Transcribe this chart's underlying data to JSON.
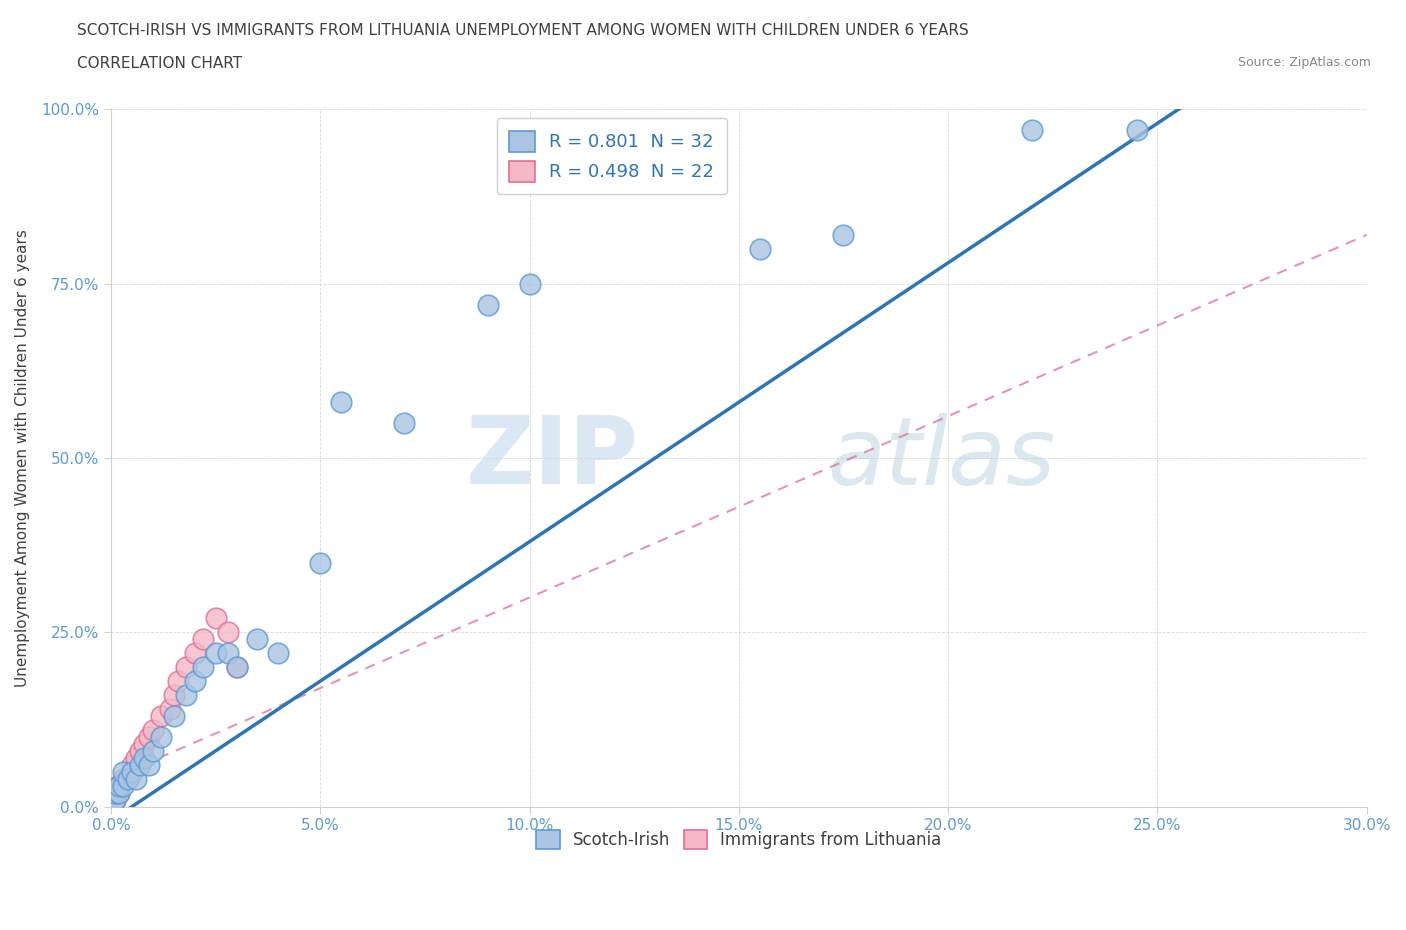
{
  "title_line1": "SCOTCH-IRISH VS IMMIGRANTS FROM LITHUANIA UNEMPLOYMENT AMONG WOMEN WITH CHILDREN UNDER 6 YEARS",
  "title_line2": "CORRELATION CHART",
  "source": "Source: ZipAtlas.com",
  "ylabel": "Unemployment Among Women with Children Under 6 years",
  "xlim": [
    0.0,
    0.3
  ],
  "ylim": [
    0.0,
    1.0
  ],
  "xtick_labels": [
    "0.0%",
    "5.0%",
    "10.0%",
    "15.0%",
    "20.0%",
    "25.0%",
    "30.0%"
  ],
  "xtick_values": [
    0.0,
    0.05,
    0.1,
    0.15,
    0.2,
    0.25,
    0.3
  ],
  "ytick_labels": [
    "0.0%",
    "25.0%",
    "50.0%",
    "75.0%",
    "100.0%"
  ],
  "ytick_values": [
    0.0,
    0.25,
    0.5,
    0.75,
    1.0
  ],
  "scotch_irish_color": "#aac4e2",
  "scotch_irish_edge_color": "#5b9bd5",
  "scotch_irish_line_color": "#2e75b6",
  "lithuania_color": "#f4b8c8",
  "lithuania_edge_color": "#e07090",
  "lithuania_line_color": "#e07090",
  "r_scotch": 0.801,
  "n_scotch": 32,
  "r_lithuania": 0.498,
  "n_lithuania": 22,
  "watermark_zip": "ZIP",
  "watermark_atlas": "atlas",
  "background_color": "#ffffff",
  "scotch_irish_x": [
    0.001,
    0.001,
    0.002,
    0.002,
    0.003,
    0.003,
    0.004,
    0.005,
    0.006,
    0.007,
    0.008,
    0.009,
    0.01,
    0.012,
    0.015,
    0.018,
    0.02,
    0.022,
    0.025,
    0.028,
    0.03,
    0.035,
    0.04,
    0.05,
    0.055,
    0.07,
    0.09,
    0.1,
    0.155,
    0.175,
    0.22,
    0.245
  ],
  "scotch_irish_y": [
    0.01,
    0.02,
    0.02,
    0.03,
    0.03,
    0.05,
    0.04,
    0.05,
    0.04,
    0.06,
    0.07,
    0.06,
    0.08,
    0.1,
    0.13,
    0.16,
    0.18,
    0.2,
    0.22,
    0.22,
    0.2,
    0.24,
    0.22,
    0.35,
    0.58,
    0.55,
    0.72,
    0.75,
    0.8,
    0.82,
    0.97,
    0.97
  ],
  "lithuania_x": [
    0.001,
    0.001,
    0.002,
    0.002,
    0.003,
    0.004,
    0.005,
    0.006,
    0.007,
    0.008,
    0.009,
    0.01,
    0.012,
    0.014,
    0.015,
    0.016,
    0.018,
    0.02,
    0.022,
    0.025,
    0.028,
    0.03
  ],
  "lithuania_y": [
    0.01,
    0.02,
    0.02,
    0.03,
    0.04,
    0.04,
    0.06,
    0.07,
    0.08,
    0.09,
    0.1,
    0.11,
    0.13,
    0.14,
    0.16,
    0.18,
    0.2,
    0.22,
    0.24,
    0.27,
    0.25,
    0.2
  ]
}
